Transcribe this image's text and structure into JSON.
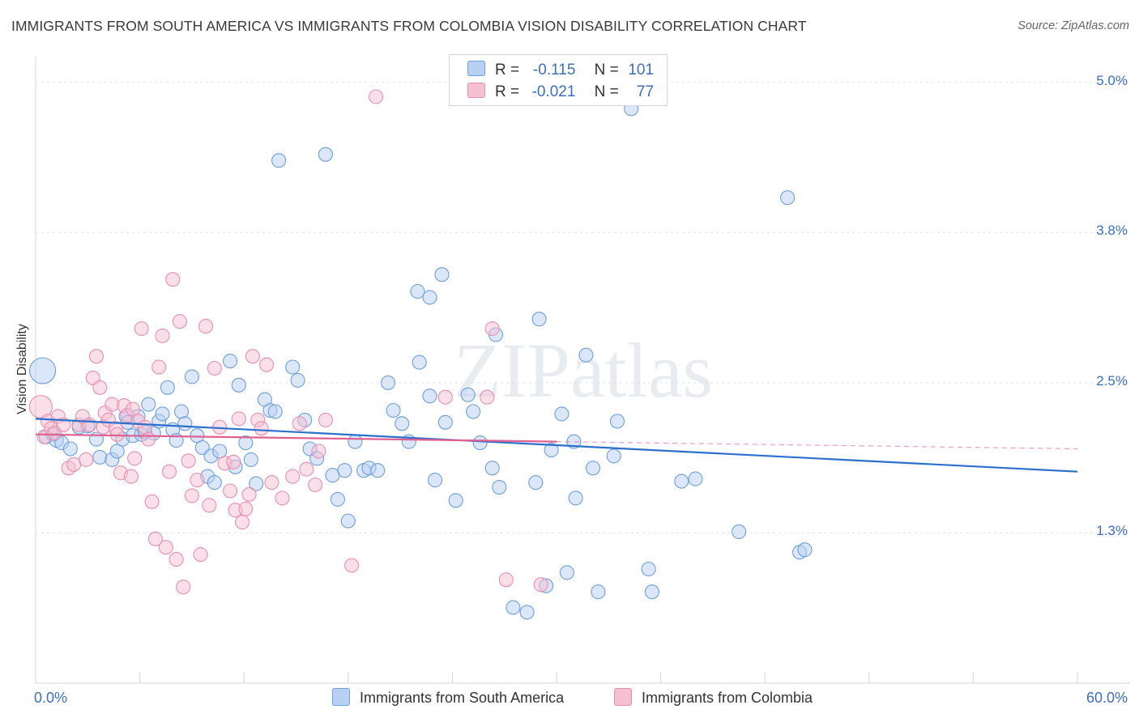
{
  "chart_data": {
    "type": "scatter",
    "title": "IMMIGRANTS FROM SOUTH AMERICA VS IMMIGRANTS FROM COLOMBIA VISION DISABILITY CORRELATION CHART",
    "source": "Source: ZipAtlas.com",
    "watermark": "ZIPatlas",
    "ylabel": "Vision Disability",
    "xlim": [
      0,
      60
    ],
    "ylim": [
      0,
      5.2
    ],
    "x_tick_labels": [
      "0.0%",
      "60.0%"
    ],
    "y_ticks": [
      {
        "value": 1.25,
        "label": "1.3%"
      },
      {
        "value": 2.5,
        "label": "2.5%"
      },
      {
        "value": 3.75,
        "label": "3.8%"
      },
      {
        "value": 5.0,
        "label": "5.0%"
      }
    ],
    "legend": [
      {
        "name": "Immigrants from South America",
        "r_label": "R =",
        "r_value": "-0.115",
        "n_label": "N =",
        "n_value": "101",
        "color": "#6d9fe0",
        "fill": "#b8d0f2",
        "line": "#2c6fcc"
      },
      {
        "name": "Immigrants from Colombia",
        "r_label": "R =",
        "r_value": "-0.021",
        "n_label": "N =",
        "n_value": "77",
        "color": "#e98fae",
        "fill": "#f6c0d2",
        "line": "#e0608f"
      }
    ],
    "series": [
      {
        "name": "Immigrants from South America",
        "trend": {
          "x0": 0,
          "y0": 2.2,
          "x1": 60,
          "y1": 1.76,
          "solid_to": 60
        },
        "points": [
          [
            0.4,
            2.6
          ],
          [
            0.6,
            2.05
          ],
          [
            1.0,
            2.07
          ],
          [
            1.2,
            2.02
          ],
          [
            1.5,
            2.0
          ],
          [
            2.0,
            1.95
          ],
          [
            2.5,
            2.13
          ],
          [
            3.0,
            2.14
          ],
          [
            3.5,
            2.03
          ],
          [
            3.7,
            1.88
          ],
          [
            4.4,
            1.86
          ],
          [
            4.7,
            1.93
          ],
          [
            5.0,
            2.03
          ],
          [
            5.2,
            2.22
          ],
          [
            5.3,
            2.17
          ],
          [
            5.6,
            2.06
          ],
          [
            5.9,
            2.22
          ],
          [
            6.1,
            2.07
          ],
          [
            6.3,
            2.09
          ],
          [
            6.5,
            2.32
          ],
          [
            6.8,
            2.08
          ],
          [
            7.1,
            2.18
          ],
          [
            7.3,
            2.24
          ],
          [
            7.6,
            2.46
          ],
          [
            7.9,
            2.11
          ],
          [
            8.1,
            2.02
          ],
          [
            8.4,
            2.26
          ],
          [
            8.6,
            2.16
          ],
          [
            9.0,
            2.55
          ],
          [
            9.3,
            2.06
          ],
          [
            9.6,
            1.96
          ],
          [
            9.9,
            1.72
          ],
          [
            10.1,
            1.89
          ],
          [
            10.3,
            1.67
          ],
          [
            10.6,
            1.93
          ],
          [
            11.2,
            2.68
          ],
          [
            11.5,
            1.8
          ],
          [
            11.7,
            2.48
          ],
          [
            12.1,
            2.0
          ],
          [
            12.4,
            1.86
          ],
          [
            12.7,
            1.66
          ],
          [
            13.2,
            2.36
          ],
          [
            13.5,
            2.27
          ],
          [
            13.8,
            2.26
          ],
          [
            14.0,
            4.35
          ],
          [
            14.8,
            2.63
          ],
          [
            15.1,
            2.52
          ],
          [
            15.5,
            2.19
          ],
          [
            15.8,
            1.95
          ],
          [
            16.2,
            1.87
          ],
          [
            16.7,
            4.4
          ],
          [
            17.1,
            1.73
          ],
          [
            17.4,
            1.53
          ],
          [
            17.8,
            1.77
          ],
          [
            18.0,
            1.35
          ],
          [
            18.4,
            2.01
          ],
          [
            18.9,
            1.77
          ],
          [
            19.2,
            1.79
          ],
          [
            19.7,
            1.77
          ],
          [
            20.3,
            2.5
          ],
          [
            20.6,
            2.27
          ],
          [
            21.1,
            2.16
          ],
          [
            21.5,
            2.01
          ],
          [
            22.1,
            2.67
          ],
          [
            22.7,
            2.39
          ],
          [
            23.0,
            1.69
          ],
          [
            23.6,
            2.17
          ],
          [
            24.2,
            1.52
          ],
          [
            24.9,
            2.4
          ],
          [
            25.2,
            2.26
          ],
          [
            25.6,
            2.0
          ],
          [
            26.3,
            1.79
          ],
          [
            26.7,
            1.63
          ],
          [
            27.5,
            0.63
          ],
          [
            28.3,
            0.59
          ],
          [
            28.8,
            1.67
          ],
          [
            29.0,
            3.03
          ],
          [
            29.4,
            0.81
          ],
          [
            29.7,
            1.94
          ],
          [
            30.3,
            2.24
          ],
          [
            30.6,
            0.92
          ],
          [
            31.0,
            2.01
          ],
          [
            31.1,
            1.54
          ],
          [
            31.7,
            2.73
          ],
          [
            32.1,
            1.79
          ],
          [
            32.4,
            0.76
          ],
          [
            33.3,
            1.89
          ],
          [
            33.5,
            2.18
          ],
          [
            34.3,
            4.78
          ],
          [
            35.3,
            0.95
          ],
          [
            35.5,
            0.76
          ],
          [
            37.2,
            1.68
          ],
          [
            38.0,
            1.7
          ],
          [
            40.5,
            1.26
          ],
          [
            43.3,
            4.04
          ],
          [
            44.0,
            1.09
          ],
          [
            44.3,
            1.11
          ],
          [
            22.0,
            3.26
          ],
          [
            22.7,
            3.21
          ],
          [
            23.4,
            3.4
          ],
          [
            26.5,
            2.9
          ]
        ]
      },
      {
        "name": "Immigrants from Colombia",
        "trend": {
          "x0": 0,
          "y0": 2.07,
          "x1": 60,
          "y1": 1.95,
          "solid_to": 30
        },
        "points": [
          [
            0.3,
            2.3
          ],
          [
            0.5,
            2.05
          ],
          [
            0.7,
            2.18
          ],
          [
            0.9,
            2.12
          ],
          [
            1.1,
            2.08
          ],
          [
            1.3,
            2.22
          ],
          [
            1.6,
            2.15
          ],
          [
            1.9,
            1.79
          ],
          [
            2.2,
            1.82
          ],
          [
            2.5,
            2.15
          ],
          [
            2.7,
            2.22
          ],
          [
            2.9,
            1.86
          ],
          [
            3.1,
            2.15
          ],
          [
            3.3,
            2.54
          ],
          [
            3.5,
            2.72
          ],
          [
            3.7,
            2.46
          ],
          [
            3.9,
            2.13
          ],
          [
            4.0,
            2.25
          ],
          [
            4.2,
            2.19
          ],
          [
            4.4,
            2.32
          ],
          [
            4.6,
            2.12
          ],
          [
            4.7,
            2.07
          ],
          [
            4.9,
            1.75
          ],
          [
            5.1,
            2.31
          ],
          [
            5.3,
            2.23
          ],
          [
            5.5,
            1.72
          ],
          [
            5.6,
            2.28
          ],
          [
            5.7,
            1.87
          ],
          [
            5.9,
            2.18
          ],
          [
            6.1,
            2.95
          ],
          [
            6.3,
            2.13
          ],
          [
            6.5,
            2.03
          ],
          [
            6.7,
            1.51
          ],
          [
            6.9,
            1.2
          ],
          [
            7.1,
            2.63
          ],
          [
            7.3,
            2.89
          ],
          [
            7.5,
            1.13
          ],
          [
            7.7,
            1.76
          ],
          [
            7.9,
            3.36
          ],
          [
            8.1,
            1.03
          ],
          [
            8.3,
            3.01
          ],
          [
            8.5,
            0.8
          ],
          [
            8.8,
            1.85
          ],
          [
            9.0,
            1.56
          ],
          [
            9.3,
            1.69
          ],
          [
            9.5,
            1.07
          ],
          [
            9.8,
            2.97
          ],
          [
            10.0,
            1.48
          ],
          [
            10.3,
            2.62
          ],
          [
            10.6,
            2.13
          ],
          [
            10.9,
            1.83
          ],
          [
            11.2,
            1.6
          ],
          [
            11.4,
            1.84
          ],
          [
            11.5,
            1.44
          ],
          [
            11.7,
            2.2
          ],
          [
            11.9,
            1.34
          ],
          [
            12.1,
            1.45
          ],
          [
            12.3,
            1.57
          ],
          [
            12.5,
            2.72
          ],
          [
            12.8,
            2.19
          ],
          [
            13.0,
            2.12
          ],
          [
            13.3,
            2.65
          ],
          [
            13.6,
            1.67
          ],
          [
            14.2,
            1.54
          ],
          [
            14.8,
            1.72
          ],
          [
            15.2,
            2.16
          ],
          [
            15.6,
            1.78
          ],
          [
            16.1,
            1.65
          ],
          [
            16.7,
            2.19
          ],
          [
            18.2,
            0.98
          ],
          [
            19.6,
            4.88
          ],
          [
            23.6,
            2.38
          ],
          [
            26.0,
            2.38
          ],
          [
            26.3,
            2.95
          ],
          [
            27.1,
            0.86
          ],
          [
            29.1,
            0.82
          ],
          [
            16.3,
            1.93
          ]
        ]
      }
    ]
  }
}
